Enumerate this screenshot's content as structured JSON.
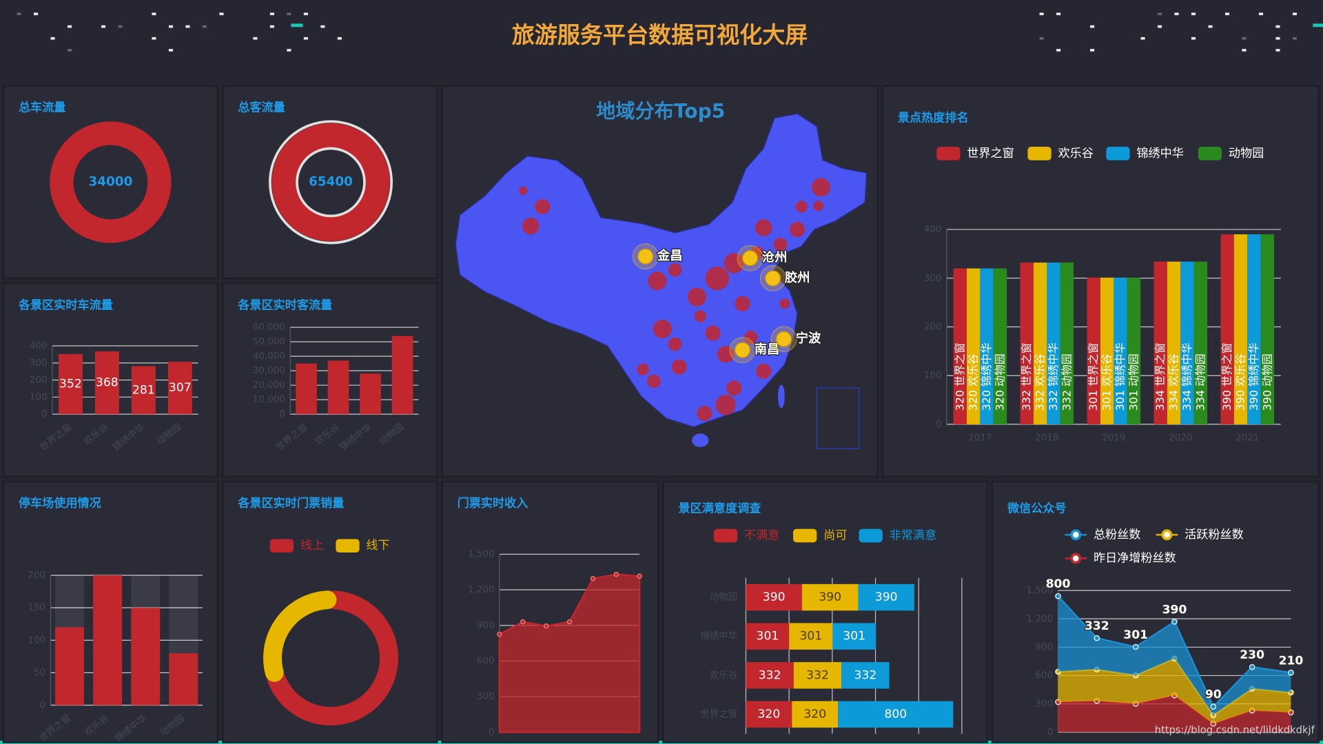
{
  "header": {
    "title": "旅游服务平台数据可视化大屏"
  },
  "watermark": "https://blog.csdn.net/lildkdkdkjf",
  "chart_data": [
    {
      "type": "donut",
      "title": "总车流量",
      "values": [
        34000
      ],
      "color": "#c1272d"
    },
    {
      "type": "donut",
      "title": "总客流量",
      "values": [
        65400
      ],
      "color": "#c1272d"
    },
    {
      "type": "bar",
      "title": "各景区实时车流量",
      "categories": [
        "世界之窗",
        "欢乐谷",
        "锦绣中华",
        "动物园"
      ],
      "values": [
        352,
        368,
        281,
        307
      ],
      "color": "#c1272d",
      "ylim": [
        0,
        400
      ],
      "yticks": [
        0,
        100,
        200,
        300,
        400
      ],
      "data_labels": true
    },
    {
      "type": "bar",
      "title": "各景区实时客流量",
      "categories": [
        "世界之窗",
        "欢乐谷",
        "锦绣中华",
        "动物园"
      ],
      "values": [
        35000,
        37000,
        28000,
        54000
      ],
      "color": "#c1272d",
      "ylim": [
        0,
        60000
      ],
      "yticks": [
        0,
        {
          "value": 10000,
          "label": "10,000"
        },
        {
          "value": 20000,
          "label": "20,000"
        },
        {
          "value": 30000,
          "label": "30,000"
        },
        {
          "value": 40000,
          "label": "40,000"
        },
        {
          "value": 50000,
          "label": "50,000"
        },
        {
          "value": 60000,
          "label": "60,000"
        }
      ]
    },
    {
      "type": "map",
      "title": "地域分布Top5",
      "categories": [
        "金昌",
        "沧州",
        "胶州",
        "南昌",
        "宁波"
      ],
      "color": "#f2c114"
    },
    {
      "type": "grouped-bar",
      "title": "景点热度排名",
      "categories": [
        "2017",
        "2018",
        "2019",
        "2020",
        "2021"
      ],
      "series": [
        {
          "name": "世界之窗",
          "color": "#c1272d",
          "values": [
            320,
            332,
            301,
            334,
            390
          ]
        },
        {
          "name": "欢乐谷",
          "color": "#e6b600",
          "values": [
            320,
            332,
            301,
            334,
            390
          ]
        },
        {
          "name": "锦绣中华",
          "color": "#0d9ad8",
          "values": [
            320,
            332,
            301,
            334,
            390
          ]
        },
        {
          "name": "动物园",
          "color": "#2b8a1d",
          "values": [
            320,
            332,
            301,
            334,
            390
          ]
        }
      ],
      "ylim": [
        0,
        400
      ],
      "yticks": [
        0,
        100,
        200,
        300,
        400
      ],
      "data_labels": true,
      "legend": "top"
    },
    {
      "type": "bar",
      "title": "停车场使用情况",
      "categories": [
        "世界之窗",
        "欢乐谷",
        "锦绣中华",
        "动物园"
      ],
      "values": [
        120,
        200,
        150,
        80
      ],
      "color": "#c1272d",
      "ylim": [
        0,
        200
      ],
      "yticks": [
        0,
        50,
        100,
        150,
        200
      ],
      "background_bars": true
    },
    {
      "type": "donut",
      "title": "各景区实时门票销量",
      "categories": [
        "线上",
        "线下"
      ],
      "values": [
        70,
        30
      ],
      "colors": [
        "#c1272d",
        "#e6b600"
      ],
      "legend": "top"
    },
    {
      "type": "area",
      "title": "门票实时收入",
      "categories": [
        null,
        null,
        null,
        null,
        null,
        null,
        null
      ],
      "values": [
        825,
        930,
        895,
        930,
        1295,
        1330,
        1315
      ],
      "color": "#c1272d",
      "ylim": [
        0,
        1500
      ],
      "yticks": [
        0,
        300,
        600,
        900,
        {
          "value": 1200,
          "label": "1,200"
        },
        {
          "value": 1500,
          "label": "1,500"
        }
      ]
    },
    {
      "type": "stacked-hbar",
      "title": "景区满意度调查",
      "categories": [
        "世界之窗",
        "欢乐谷",
        "锦绣中华",
        "动物园"
      ],
      "series": [
        {
          "name": "不满意",
          "color": "#c1272d",
          "values": [
            320,
            332,
            301,
            390
          ]
        },
        {
          "name": "尚可",
          "color": "#e6b600",
          "values": [
            320,
            332,
            301,
            390
          ]
        },
        {
          "name": "非常满意",
          "color": "#0d9ad8",
          "values": [
            800,
            332,
            301,
            390
          ]
        }
      ],
      "xlim": [
        0,
        1500
      ],
      "xticks": [
        0,
        300,
        600,
        900,
        1200,
        1500
      ],
      "data_labels": true,
      "legend": "top"
    },
    {
      "type": "stacked-area",
      "title": "微信公众号",
      "categories": [
        null,
        null,
        null,
        null,
        null,
        null,
        null
      ],
      "series": [
        {
          "name": "总粉丝数",
          "color": "#1a8fd1",
          "values": [
            800,
            332,
            301,
            390,
            90,
            230,
            210
          ],
          "data_labels": true
        },
        {
          "name": "活跃粉丝数",
          "color": "#e6b600",
          "values": [
            320,
            332,
            301,
            390,
            90,
            230,
            210
          ]
        },
        {
          "name": "昨日净增粉丝数",
          "color": "#c1272d",
          "values": [
            320,
            332,
            301,
            390,
            90,
            230,
            210
          ]
        }
      ],
      "ylim": [
        0,
        1500
      ],
      "yticks": [
        0,
        300,
        600,
        900,
        {
          "value": 1200,
          "label": "1,200"
        },
        {
          "value": 1500,
          "label": "1,500"
        }
      ],
      "legend": "top"
    }
  ]
}
